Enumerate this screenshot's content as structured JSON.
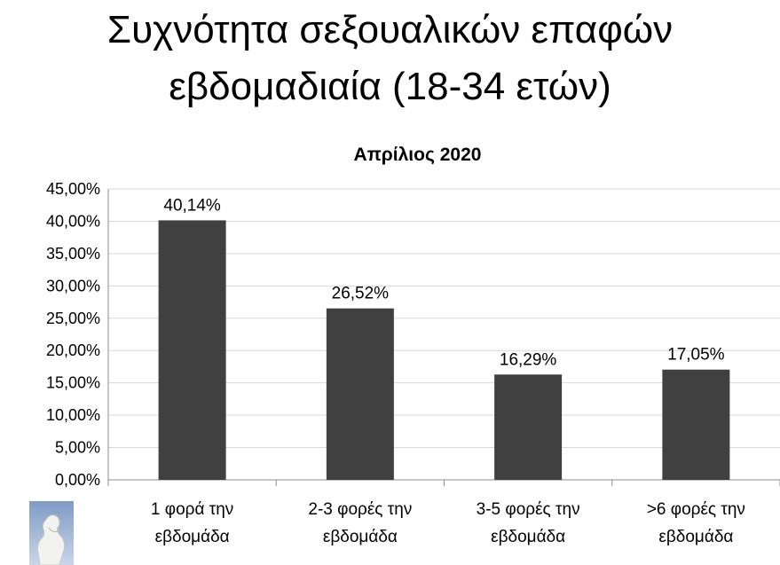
{
  "slide": {
    "title_line1": "Συχνότητα σεξουαλικών επαφών",
    "title_line2": "εβδομαδιαία (18-34 ετών)"
  },
  "colors": {
    "bar": "#404040",
    "grid": "#d9d9d9",
    "axis": "#8c8c8c",
    "text": "#000000"
  },
  "chart_data": {
    "type": "bar",
    "title": "Απρίλιος 2020",
    "categories": [
      [
        "1 φορά την",
        "εβδομάδα"
      ],
      [
        "2-3 φορές την",
        "εβδομάδα"
      ],
      [
        "3-5 φορές την",
        "εβδομάδα"
      ],
      [
        ">6 φορές την",
        "εβδομάδα"
      ]
    ],
    "values": [
      40.14,
      26.52,
      16.29,
      17.05
    ],
    "value_labels": [
      "40,14%",
      "26,52%",
      "16,29%",
      "17,05%"
    ],
    "ylim": [
      0,
      45
    ],
    "yticks": [
      0,
      5,
      10,
      15,
      20,
      25,
      30,
      35,
      40,
      45
    ],
    "ytick_labels": [
      "0,00%",
      "5,00%",
      "10,00%",
      "15,00%",
      "20,00%",
      "25,00%",
      "30,00%",
      "35,00%",
      "40,00%",
      "45,00%"
    ],
    "grid": true,
    "legend": false
  },
  "logo": {
    "icon": "thinker-statue-icon"
  }
}
